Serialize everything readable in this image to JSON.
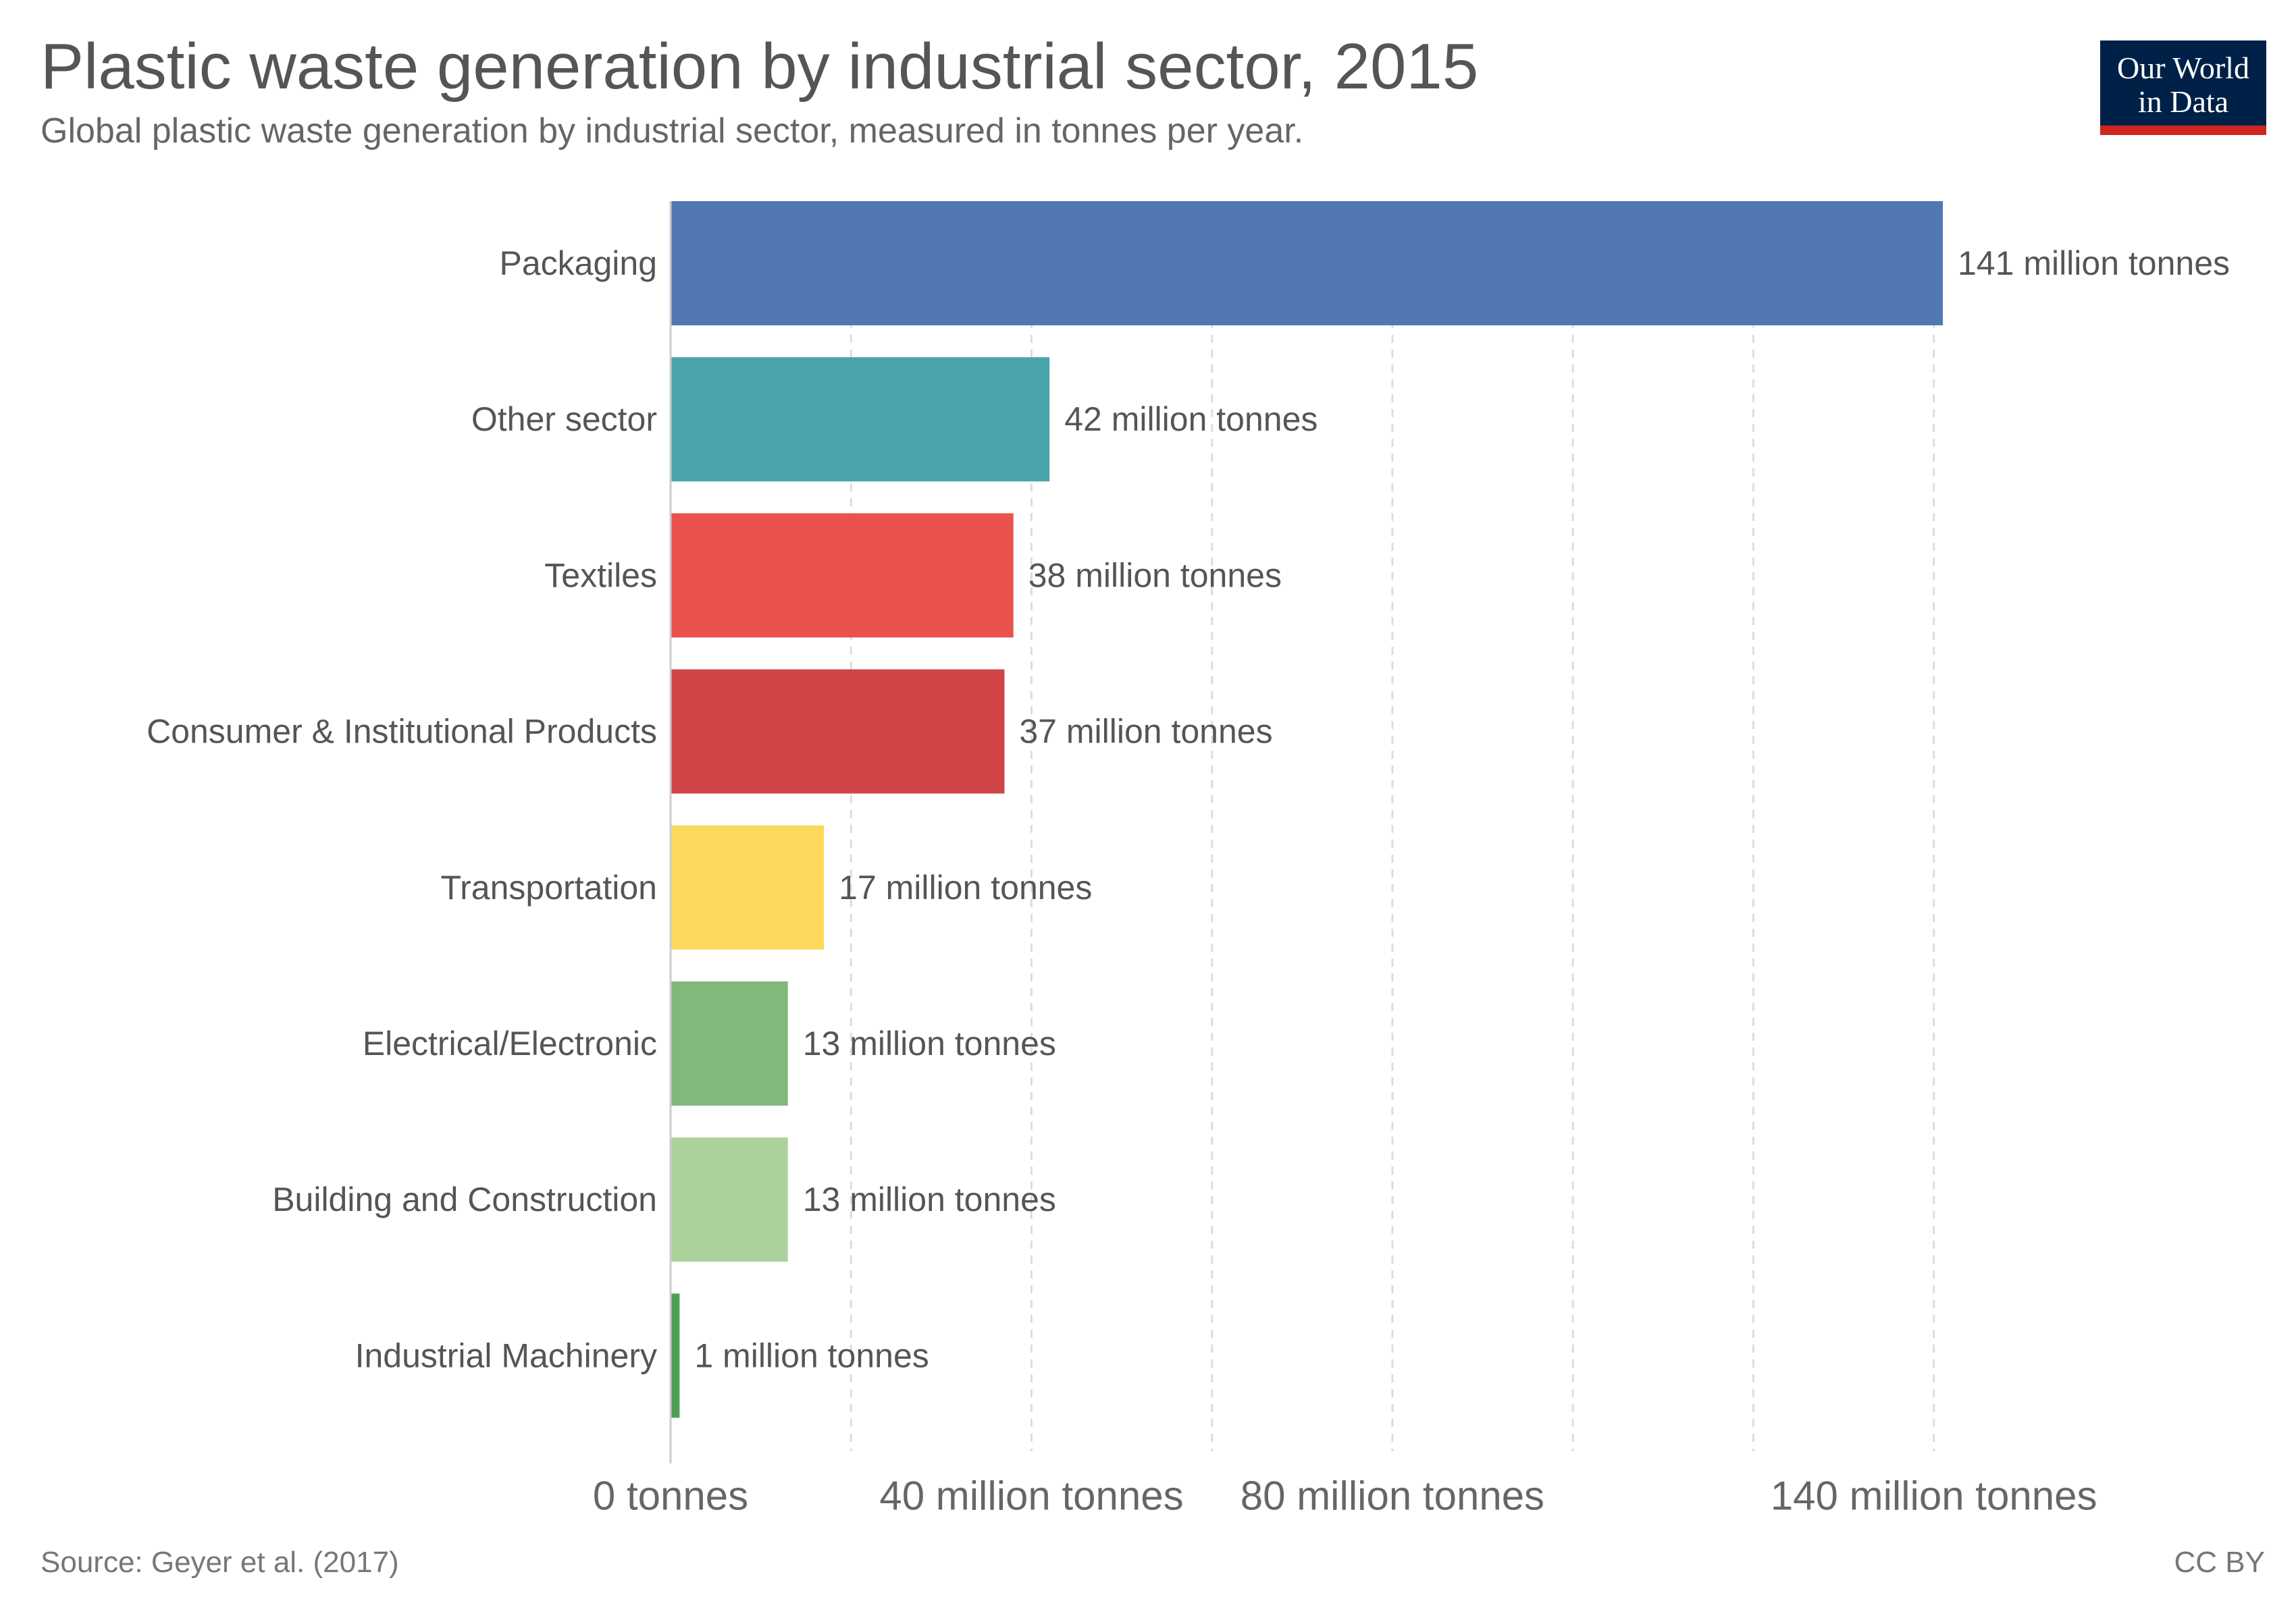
{
  "header": {
    "title": "Plastic waste generation by industrial sector, 2015",
    "subtitle": "Global plastic waste generation by industrial sector, measured in tonnes per year."
  },
  "logo": {
    "line1": "Our World",
    "line2": "in Data",
    "background_color": "#002147",
    "accent_color": "#ce261e"
  },
  "footer": {
    "source": "Source: Geyer et al. (2017)",
    "license": "CC BY"
  },
  "chart_data": {
    "type": "bar",
    "orientation": "horizontal",
    "unit": "million tonnes",
    "xlim": [
      0,
      141
    ],
    "grid": "vertical dashed",
    "categories": [
      "Packaging",
      "Other sector",
      "Textiles",
      "Consumer & Institutional Products",
      "Transportation",
      "Electrical/Electronic",
      "Building and Construction",
      "Industrial Machinery"
    ],
    "values": [
      141,
      42,
      38,
      37,
      17,
      13,
      13,
      1
    ],
    "value_labels": [
      "141 million tonnes",
      "42 million tonnes",
      "38 million tonnes",
      "37 million tonnes",
      "17 million tonnes",
      "13 million tonnes",
      "13 million tonnes",
      "1 million tonnes"
    ],
    "colors": [
      "#5278b4",
      "#4ba4ac",
      "#e9524d",
      "#d14547",
      "#fcd85c",
      "#80b97a",
      "#acd19a",
      "#4e9e56"
    ],
    "gridlines": [
      0,
      20,
      40,
      60,
      80,
      100,
      120,
      140
    ],
    "xticks": [
      {
        "value": 0,
        "label": "0 tonnes"
      },
      {
        "value": 40,
        "label": "40 million tonnes"
      },
      {
        "value": 80,
        "label": "80 million tonnes"
      },
      {
        "value": 140,
        "label": "140 million tonnes"
      }
    ]
  }
}
